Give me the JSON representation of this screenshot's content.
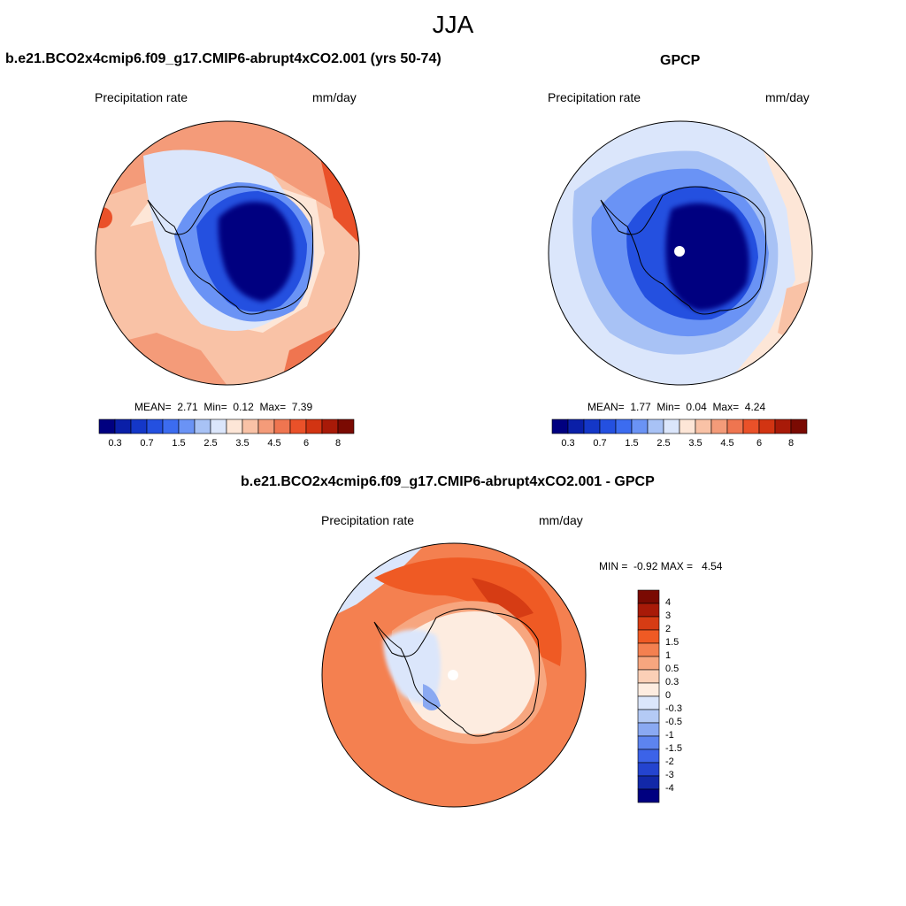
{
  "figure": {
    "title": "JJA"
  },
  "panels": {
    "model": {
      "title": "b.e21.BCO2x4cmip6.f09_g17.CMIP6-abrupt4xCO2.001 (yrs 50-74)",
      "variable": "Precipitation rate",
      "units": "mm/day",
      "stats": {
        "mean_label": "MEAN=",
        "mean": "2.71",
        "min_label": "Min=",
        "min": "0.12",
        "max_label": "Max=",
        "max": "7.39"
      }
    },
    "obs": {
      "title": "GPCP",
      "variable": "Precipitation rate",
      "units": "mm/day",
      "stats": {
        "mean_label": "MEAN=",
        "mean": "1.77",
        "min_label": "Min=",
        "min": "0.04",
        "max_label": "Max=",
        "max": "4.24"
      }
    },
    "diff": {
      "title": "b.e21.BCO2x4cmip6.f09_g17.CMIP6-abrupt4xCO2.001 - GPCP",
      "variable": "Precipitation rate",
      "units": "mm/day",
      "stats": {
        "min_label": "MIN =",
        "min": "-0.92",
        "max_label": "MAX =",
        "max": "4.54"
      }
    }
  },
  "colorbars": {
    "abs": {
      "colors": [
        "#000080",
        "#0a1fa8",
        "#1437c8",
        "#2450e0",
        "#3c6cf0",
        "#6a93f5",
        "#a8c2f5",
        "#dbe6fb",
        "#fde6d7",
        "#f9c2a6",
        "#f49b79",
        "#ef7550",
        "#ea5129",
        "#d23412",
        "#a81a08",
        "#7a0a02"
      ],
      "tick_labels": [
        "0.3",
        "0.7",
        "1.5",
        "2.5",
        "3.5",
        "4.5",
        "6",
        "8"
      ]
    },
    "diff": {
      "colors_top_to_bottom": [
        "#7a0a02",
        "#a81a08",
        "#d63c14",
        "#ef5a24",
        "#f48050",
        "#f7a67f",
        "#fbcfb6",
        "#fdece0",
        "#dbe6fb",
        "#b4caf5",
        "#8aa9f2",
        "#5d84ef",
        "#3c63e8",
        "#2444cf",
        "#1228a8",
        "#000080"
      ],
      "tick_labels": [
        "4",
        "3",
        "2",
        "1.5",
        "1",
        "0.5",
        "0.3",
        "0",
        "-0.3",
        "-0.5",
        "-1",
        "-1.5",
        "-2",
        "-3",
        "-4"
      ]
    }
  }
}
